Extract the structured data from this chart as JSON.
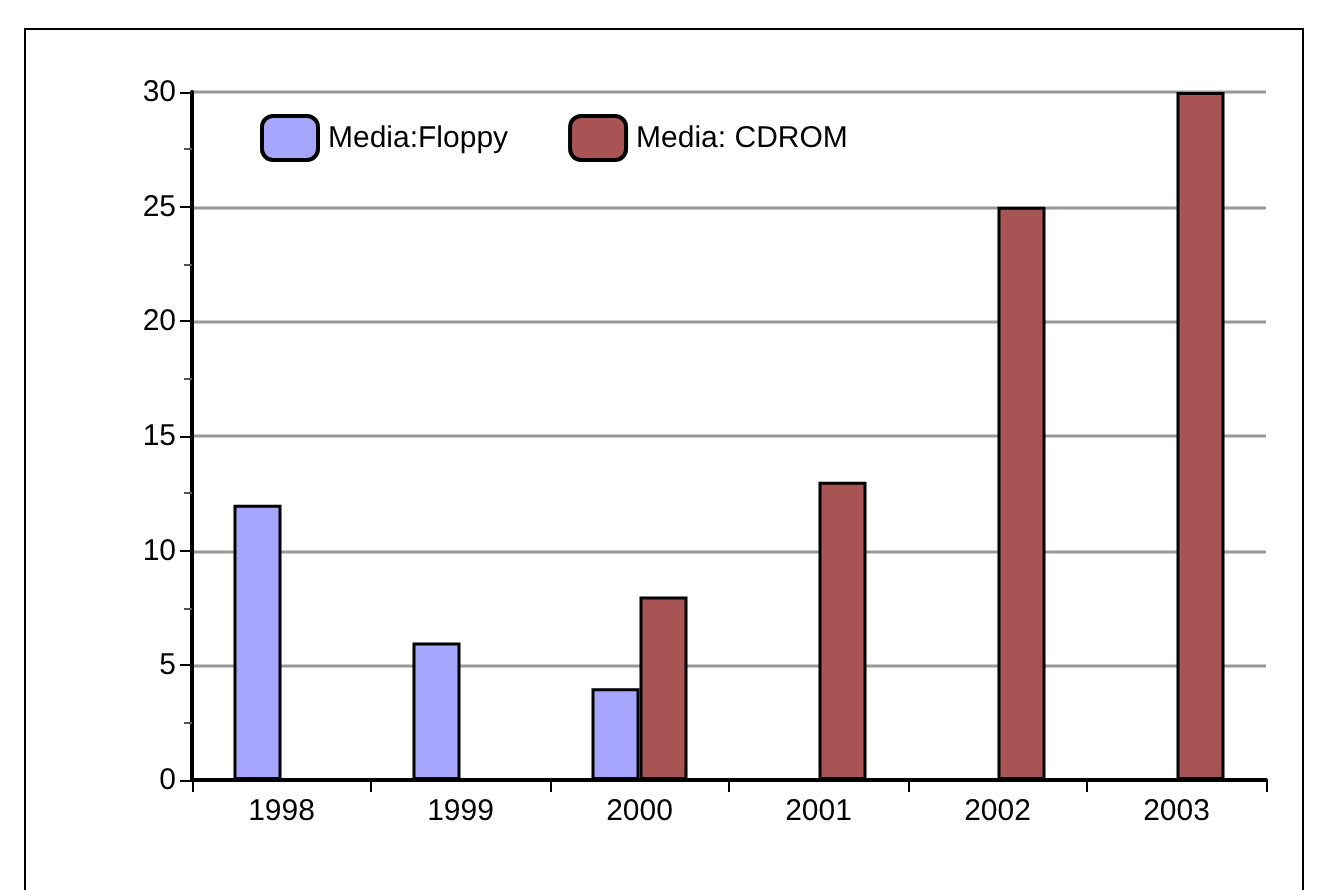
{
  "chart_data": {
    "type": "bar",
    "categories": [
      "1998",
      "1999",
      "2000",
      "2001",
      "2002",
      "2003"
    ],
    "series": [
      {
        "name": "Media:Floppy",
        "color": "#a6a6ff",
        "values": [
          12,
          6,
          4,
          null,
          null,
          null
        ]
      },
      {
        "name": "Media: CDROM",
        "color": "#a85454",
        "values": [
          null,
          null,
          8,
          13,
          25,
          30
        ]
      }
    ],
    "ylim": [
      0,
      30
    ],
    "yticks": [
      0,
      5,
      10,
      15,
      20,
      25,
      30
    ],
    "grid": "y",
    "legend": "top left"
  }
}
